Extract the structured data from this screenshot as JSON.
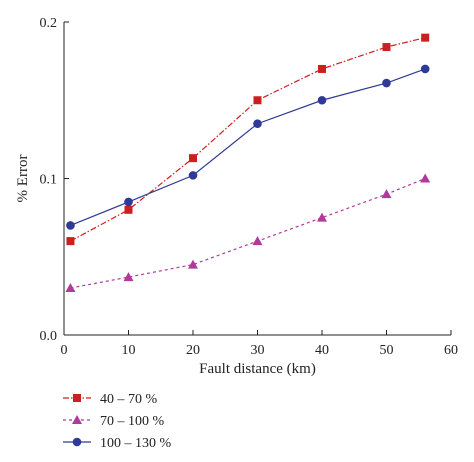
{
  "chart_data": {
    "type": "line",
    "title": "",
    "xlabel": "Fault distance (km)",
    "ylabel": "% Error",
    "xlim": [
      0,
      60
    ],
    "ylim": [
      0,
      0.2
    ],
    "x_ticks": [
      0,
      10,
      20,
      30,
      40,
      50,
      60
    ],
    "x_tick_labels": [
      "0",
      "10",
      "20",
      "30",
      "40",
      "50",
      "60"
    ],
    "y_ticks": [
      0,
      0.1,
      0.2
    ],
    "y_tick_labels": [
      "0.0",
      "0.1",
      "0.2"
    ],
    "grid": false,
    "legend_position": "bottom-left",
    "x": [
      1,
      10,
      20,
      30,
      40,
      50,
      56
    ],
    "series": [
      {
        "name": "40 – 70 %",
        "values": [
          0.06,
          0.08,
          0.113,
          0.15,
          0.17,
          0.184,
          0.19
        ],
        "color": "#cc1f1f",
        "marker": "square",
        "line_style": "dash-dot"
      },
      {
        "name": "70 – 100 %",
        "values": [
          0.03,
          0.037,
          0.045,
          0.06,
          0.075,
          0.09,
          0.1
        ],
        "color": "#b03a9c",
        "marker": "triangle",
        "line_style": "dashed"
      },
      {
        "name": "100 – 130 %",
        "values": [
          0.07,
          0.085,
          0.102,
          0.135,
          0.15,
          0.161,
          0.17
        ],
        "color": "#2e3a96",
        "marker": "circle",
        "line_style": "solid"
      }
    ]
  }
}
